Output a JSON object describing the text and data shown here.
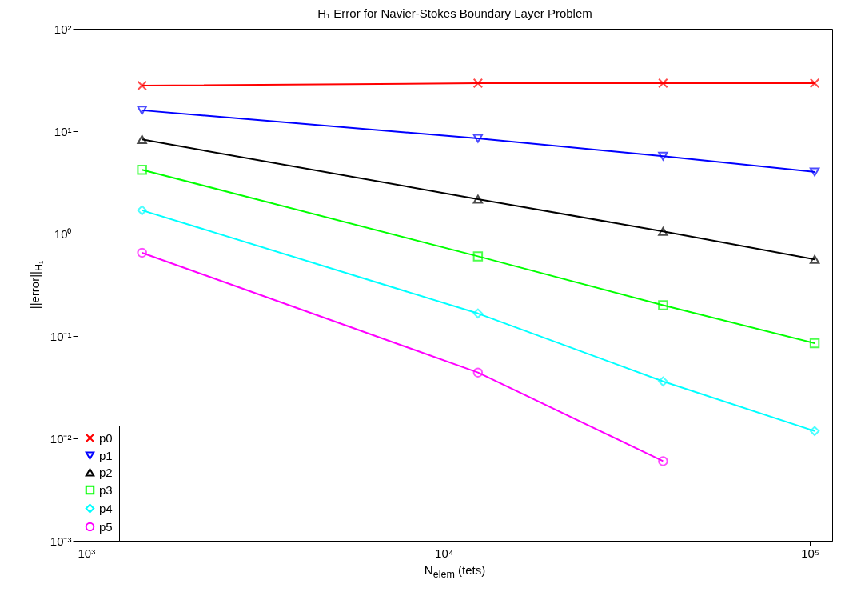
{
  "chart_data": {
    "type": "line",
    "title": "H₁ Error for Navier-Stokes Boundary Layer Problem",
    "xlabel": "N$_{elem}$ (tets)",
    "ylabel": "||error||$_{H₁}$",
    "log": "xy",
    "grid": false,
    "legend": "bottom left",
    "xlim": [
      1000,
      115000
    ],
    "xticks": [
      {
        "value": 1000,
        "label": "10³"
      },
      {
        "value": 10000,
        "label": "10⁴"
      },
      {
        "value": 100000,
        "label": "10⁵"
      }
    ],
    "ylim": [
      0.001,
      100
    ],
    "yticks": [
      {
        "value": 0.001,
        "label": "10⁻³"
      },
      {
        "value": 0.01,
        "label": "10⁻²"
      },
      {
        "value": 0.1,
        "label": "10⁻¹"
      },
      {
        "value": 1,
        "label": "10⁰"
      },
      {
        "value": 10,
        "label": "10¹"
      },
      {
        "value": 100,
        "label": "10²"
      }
    ],
    "x": [
      1500,
      12400,
      39700,
      103000
    ],
    "series": [
      {
        "name": "p0",
        "color": "#ff0000",
        "marker": "cross",
        "values": [
          27.9,
          29.4,
          29.4,
          29.4
        ]
      },
      {
        "name": "p1",
        "color": "#0000ff",
        "marker": "triangle",
        "values": [
          16.0,
          8.5,
          5.7,
          4.0
        ]
      },
      {
        "name": "p2",
        "color": "#000000",
        "marker": "triangle",
        "values": [
          8.3,
          2.17,
          1.05,
          0.56
        ]
      },
      {
        "name": "p3",
        "color": "#00ff00",
        "marker": "square",
        "values": [
          4.2,
          0.6,
          0.2,
          0.085
        ]
      },
      {
        "name": "p4",
        "color": "#00ffff",
        "marker": "diamond",
        "values": [
          1.69,
          0.166,
          0.036,
          0.0118
        ]
      },
      {
        "name": "p5",
        "color": "#ff00ff",
        "marker": "circle",
        "values": [
          0.65,
          0.044,
          0.006,
          null
        ]
      }
    ]
  }
}
